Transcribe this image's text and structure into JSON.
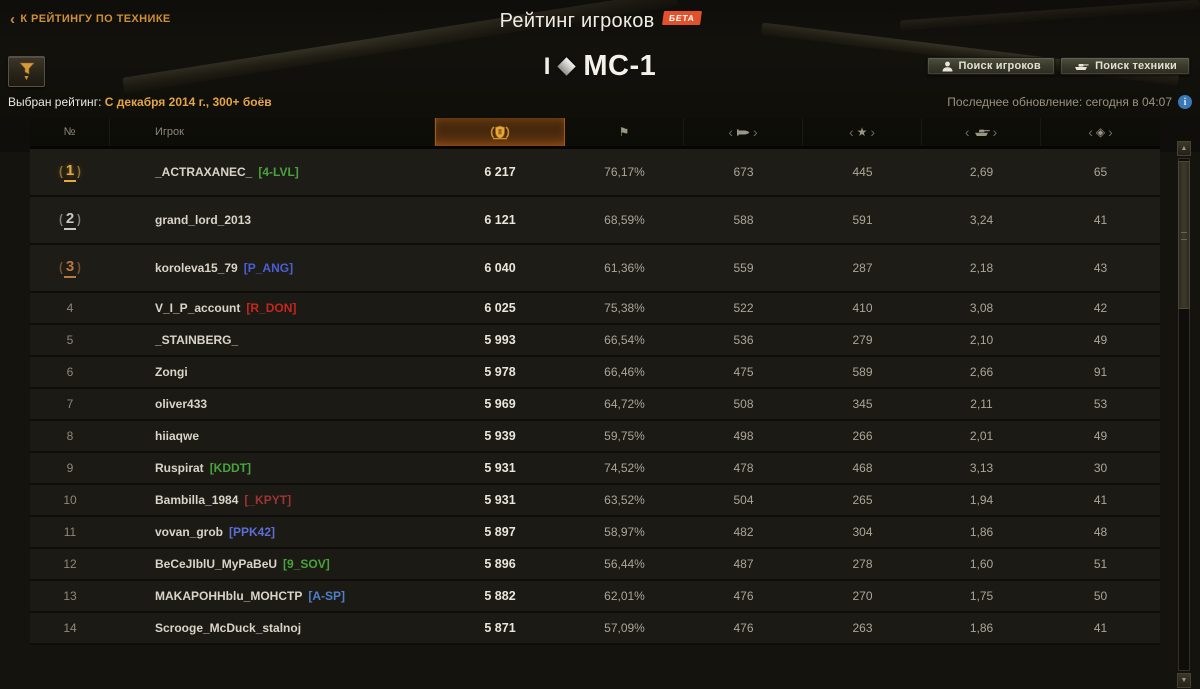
{
  "page": {
    "back_link": "К РЕЙТИНГУ ПО ТЕХНИКЕ",
    "title": "Рейтинг игроков",
    "beta_badge": "БЕТА",
    "tank_tier": "I",
    "tank_name": "МС-1",
    "search_players_button": "Поиск игроков",
    "search_vehicles_button": "Поиск техники",
    "selected_rating_label": "Выбран рейтинг:",
    "selected_rating_value": "С декабря 2014 г., 300+ боёв",
    "last_update": "Последнее обновление: сегодня в 04:07",
    "info_glyph": "i"
  },
  "table": {
    "col_num": "№",
    "col_player": "Игрок",
    "icon_columns": [
      "rating-wreath",
      "wins-flag",
      "avg-damage-shell",
      "avg-experience-star",
      "avg-frags-tank",
      "hit-ratio-diamond"
    ],
    "glyphs": {
      "flag": "⚑",
      "star": "★",
      "diamond": "◈",
      "bracket_left": "‹",
      "bracket_right": "›",
      "up_arrow": "▲",
      "down_arrow": "▼",
      "back_chevron": "‹",
      "filter_caret": "▼"
    },
    "rows": [
      {
        "rank": "1",
        "medal": "gold",
        "name": "_ACTRAXANEC_",
        "clan": "[4-LVL]",
        "clan_color": "#48a33c",
        "rating": "6 217",
        "wins": "76,17%",
        "damage": "673",
        "exp": "445",
        "frags": "2,69",
        "hits": "65"
      },
      {
        "rank": "2",
        "medal": "silver",
        "name": "grand_lord_2013",
        "clan": "",
        "clan_color": "",
        "rating": "6 121",
        "wins": "68,59%",
        "damage": "588",
        "exp": "591",
        "frags": "3,24",
        "hits": "41"
      },
      {
        "rank": "3",
        "medal": "bronze",
        "name": "koroleva15_79",
        "clan": "[P_ANG]",
        "clan_color": "#4a5fd3",
        "rating": "6 040",
        "wins": "61,36%",
        "damage": "559",
        "exp": "287",
        "frags": "2,18",
        "hits": "43"
      },
      {
        "rank": "4",
        "medal": null,
        "name": "V_I_P_account",
        "clan": "[R_DON]",
        "clan_color": "#c6261d",
        "rating": "6 025",
        "wins": "75,38%",
        "damage": "522",
        "exp": "410",
        "frags": "3,08",
        "hits": "42"
      },
      {
        "rank": "5",
        "medal": null,
        "name": "_STAINBERG_",
        "clan": "",
        "clan_color": "",
        "rating": "5 993",
        "wins": "66,54%",
        "damage": "536",
        "exp": "279",
        "frags": "2,10",
        "hits": "49"
      },
      {
        "rank": "6",
        "medal": null,
        "name": "Zongi",
        "clan": "",
        "clan_color": "",
        "rating": "5 978",
        "wins": "66,46%",
        "damage": "475",
        "exp": "589",
        "frags": "2,66",
        "hits": "91"
      },
      {
        "rank": "7",
        "medal": null,
        "name": "oliver433",
        "clan": "",
        "clan_color": "",
        "rating": "5 969",
        "wins": "64,72%",
        "damage": "508",
        "exp": "345",
        "frags": "2,11",
        "hits": "53"
      },
      {
        "rank": "8",
        "medal": null,
        "name": "hiiaqwe",
        "clan": "",
        "clan_color": "",
        "rating": "5 939",
        "wins": "59,75%",
        "damage": "498",
        "exp": "266",
        "frags": "2,01",
        "hits": "49"
      },
      {
        "rank": "9",
        "medal": null,
        "name": "Ruspirat",
        "clan": "[KDDT]",
        "clan_color": "#48a33c",
        "rating": "5 931",
        "wins": "74,52%",
        "damage": "478",
        "exp": "468",
        "frags": "3,13",
        "hits": "30"
      },
      {
        "rank": "10",
        "medal": null,
        "name": "Bambilla_1984",
        "clan": "[_KPYT]",
        "clan_color": "#9e3434",
        "rating": "5 931",
        "wins": "63,52%",
        "damage": "504",
        "exp": "265",
        "frags": "1,94",
        "hits": "41"
      },
      {
        "rank": "11",
        "medal": null,
        "name": "vovan_grob",
        "clan": "[PPK42]",
        "clan_color": "#5b6ed6",
        "rating": "5 897",
        "wins": "58,97%",
        "damage": "482",
        "exp": "304",
        "frags": "1,86",
        "hits": "48"
      },
      {
        "rank": "12",
        "medal": null,
        "name": "BeCeJIblU_MyPaBeU",
        "clan": "[9_SOV]",
        "clan_color": "#48a33c",
        "rating": "5 896",
        "wins": "56,44%",
        "damage": "487",
        "exp": "278",
        "frags": "1,60",
        "hits": "51"
      },
      {
        "rank": "13",
        "medal": null,
        "name": "MAKAPOHHblu_MOHCTP",
        "clan": "[A-SP]",
        "clan_color": "#4f7fc9",
        "rating": "5 882",
        "wins": "62,01%",
        "damage": "476",
        "exp": "270",
        "frags": "1,75",
        "hits": "50"
      },
      {
        "rank": "14",
        "medal": null,
        "name": "Scrooge_McDuck_stalnoj",
        "clan": "",
        "clan_color": "",
        "rating": "5 871",
        "wins": "57,09%",
        "damage": "476",
        "exp": "263",
        "frags": "1,86",
        "hits": "41"
      }
    ]
  },
  "colors": {
    "accent_gold": "#d79a3a",
    "beta_orange": "#e1512b",
    "selected_column_glow": "#b96a1e",
    "info_blue": "#3a77b5",
    "clan_green": "#48a33c",
    "clan_blue": "#4a5fd3",
    "clan_red": "#c6261d",
    "clan_maroon": "#9e3434",
    "clan_steel_blue": "#4f7fc9"
  }
}
